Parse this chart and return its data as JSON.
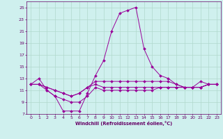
{
  "xlabel": "Windchill (Refroidissement éolien,°C)",
  "x": [
    0,
    1,
    2,
    3,
    4,
    5,
    6,
    7,
    8,
    9,
    10,
    11,
    12,
    13,
    14,
    15,
    16,
    17,
    18,
    19,
    20,
    21,
    22,
    23
  ],
  "line1": [
    12.0,
    13.0,
    11.0,
    10.0,
    7.5,
    7.5,
    7.5,
    10.5,
    13.5,
    16.0,
    21.0,
    24.0,
    24.5,
    25.0,
    18.0,
    15.0,
    13.5,
    13.0,
    12.0,
    11.5,
    11.5,
    12.5,
    12.0,
    12.0
  ],
  "line2": [
    12.0,
    12.0,
    11.5,
    11.0,
    10.5,
    10.0,
    10.5,
    11.5,
    12.5,
    12.5,
    12.5,
    12.5,
    12.5,
    12.5,
    12.5,
    12.5,
    12.5,
    12.5,
    12.0,
    11.5,
    11.5,
    11.5,
    12.0,
    12.0
  ],
  "line3": [
    12.0,
    12.0,
    11.5,
    11.0,
    10.5,
    10.0,
    10.5,
    11.5,
    12.0,
    11.5,
    11.5,
    11.5,
    11.5,
    11.5,
    11.5,
    11.5,
    11.5,
    11.5,
    11.5,
    11.5,
    11.5,
    11.5,
    12.0,
    12.0
  ],
  "line4": [
    12.0,
    12.0,
    11.0,
    10.0,
    9.5,
    9.0,
    9.0,
    10.0,
    11.5,
    11.0,
    11.0,
    11.0,
    11.0,
    11.0,
    11.0,
    11.0,
    11.5,
    11.5,
    11.5,
    11.5,
    11.5,
    11.5,
    12.0,
    12.0
  ],
  "line_color": "#990099",
  "marker_color": "#990099",
  "bg_color": "#cff0ee",
  "grid_color": "#b0d8cc",
  "axis_color": "#660066",
  "ylim": [
    7,
    26
  ],
  "yticks": [
    7,
    9,
    11,
    13,
    15,
    17,
    19,
    21,
    23,
    25
  ],
  "xlim": [
    -0.5,
    23.5
  ],
  "xticks": [
    0,
    1,
    2,
    3,
    4,
    5,
    6,
    7,
    8,
    9,
    10,
    11,
    12,
    13,
    14,
    15,
    16,
    17,
    18,
    19,
    20,
    21,
    22,
    23
  ]
}
